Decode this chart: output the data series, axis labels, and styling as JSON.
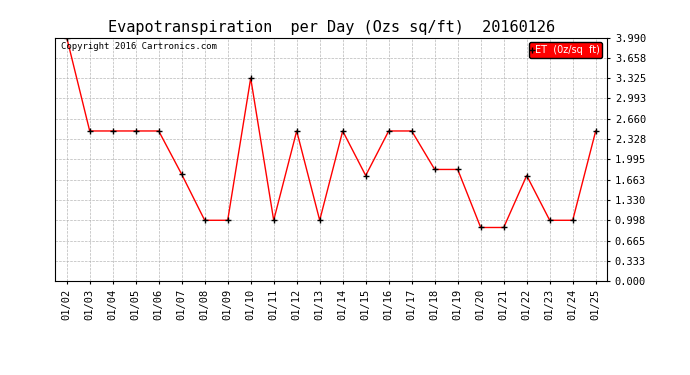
{
  "title": "Evapotranspiration  per Day (Ozs sq/ft)  20160126",
  "copyright_text": "Copyright 2016 Cartronics.com",
  "legend_label": "ET  (0z/sq  ft)",
  "x_labels": [
    "01/02",
    "01/03",
    "01/04",
    "01/05",
    "01/06",
    "01/07",
    "01/08",
    "01/09",
    "01/10",
    "01/11",
    "01/12",
    "01/13",
    "01/14",
    "01/15",
    "01/16",
    "01/17",
    "01/18",
    "01/19",
    "01/20",
    "01/21",
    "01/22",
    "01/23",
    "01/24",
    "01/25"
  ],
  "y_values": [
    3.99,
    2.46,
    2.46,
    2.46,
    2.46,
    1.75,
    0.998,
    0.998,
    3.325,
    0.998,
    2.46,
    0.998,
    2.46,
    1.73,
    2.46,
    2.46,
    1.83,
    1.83,
    0.88,
    0.88,
    1.73,
    0.998,
    0.998,
    2.46
  ],
  "line_color": "red",
  "marker_color": "black",
  "marker": "+",
  "ylim": [
    0.0,
    3.99
  ],
  "yticks": [
    0.0,
    0.333,
    0.665,
    0.998,
    1.33,
    1.663,
    1.995,
    2.328,
    2.66,
    2.993,
    3.325,
    3.658,
    3.99
  ],
  "background_color": "#ffffff",
  "grid_color": "#b0b0b0",
  "title_fontsize": 11,
  "tick_fontsize": 7.5,
  "legend_bg": "#ff0000",
  "legend_text_color": "#ffffff"
}
